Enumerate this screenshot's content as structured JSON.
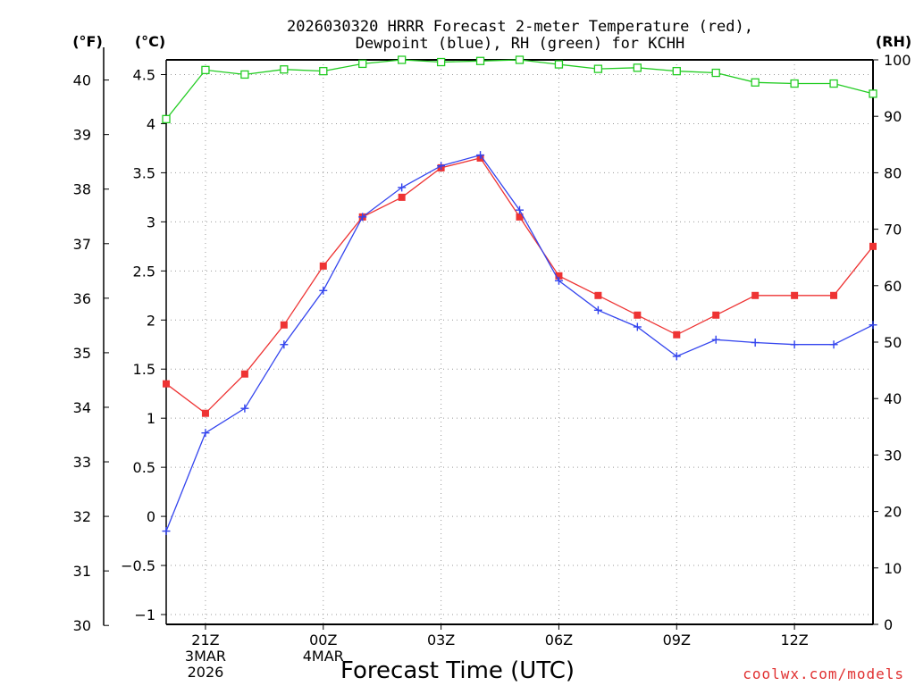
{
  "chart_data": {
    "type": "line",
    "title_lines": [
      "2026030320 HRRR Forecast 2-meter Temperature (red),",
      "Dewpoint (blue), RH (green) for KCHH"
    ],
    "xlabel": "Forecast Time (UTC)",
    "credit": "coolwx.com/models",
    "units": {
      "f": "(°F)",
      "c": "(°C)",
      "rh": "(RH)"
    },
    "x_hours": [
      0,
      1,
      2,
      3,
      4,
      5,
      6,
      7,
      8,
      9,
      10,
      11,
      12,
      13,
      14,
      15,
      16,
      17,
      18
    ],
    "x_ticks": [
      {
        "pos": 1,
        "lines": [
          "21Z",
          "3MAR",
          "2026"
        ]
      },
      {
        "pos": 4,
        "lines": [
          "00Z",
          "4MAR"
        ]
      },
      {
        "pos": 7,
        "lines": [
          "03Z"
        ]
      },
      {
        "pos": 10,
        "lines": [
          "06Z"
        ]
      },
      {
        "pos": 13,
        "lines": [
          "09Z"
        ]
      },
      {
        "pos": 16,
        "lines": [
          "12Z"
        ]
      }
    ],
    "xlim": [
      0,
      18
    ],
    "y_celsius": {
      "lim": [
        -1.1,
        4.65
      ],
      "ticks": [
        "-1",
        "-0.5",
        "0",
        "0.5",
        "1",
        "1.5",
        "2",
        "2.5",
        "3",
        "3.5",
        "4",
        "4.5"
      ]
    },
    "y_fahrenheit": {
      "ticks": [
        "30",
        "31",
        "32",
        "33",
        "34",
        "35",
        "36",
        "37",
        "38",
        "39",
        "40"
      ]
    },
    "y_rh": {
      "lim": [
        0,
        100
      ],
      "ticks": [
        "0",
        "10",
        "20",
        "30",
        "40",
        "50",
        "60",
        "70",
        "80",
        "90",
        "100"
      ]
    },
    "series": [
      {
        "name": "Temperature",
        "axis": "celsius",
        "color": "#ee3333",
        "marker": "filled-square",
        "values": [
          1.35,
          1.05,
          1.45,
          1.95,
          2.55,
          3.05,
          3.25,
          3.55,
          3.65,
          3.05,
          2.45,
          2.25,
          2.05,
          1.85,
          2.05,
          2.25,
          2.25,
          2.25,
          2.75
        ]
      },
      {
        "name": "Dewpoint",
        "axis": "celsius",
        "color": "#3344ee",
        "marker": "plus",
        "values": [
          -0.15,
          0.85,
          1.1,
          1.75,
          2.3,
          3.05,
          3.35,
          3.57,
          3.68,
          3.12,
          2.4,
          2.1,
          1.93,
          1.63,
          1.8,
          1.77,
          1.75,
          1.75,
          1.95
        ]
      },
      {
        "name": "RH",
        "axis": "rh",
        "color": "#22cc22",
        "marker": "open-square",
        "values": [
          89.5,
          98.2,
          97.4,
          98.3,
          98.0,
          99.3,
          100,
          99.6,
          99.8,
          100,
          99.2,
          98.4,
          98.6,
          98.0,
          97.7,
          96.0,
          95.8,
          95.8,
          94.0
        ]
      }
    ]
  }
}
